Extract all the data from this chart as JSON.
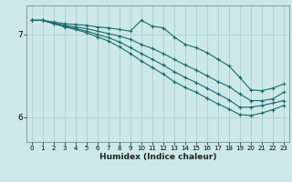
{
  "xlabel": "Humidex (Indice chaleur)",
  "bg_color": "#cce8e8",
  "line_color": "#1a6b6b",
  "grid_color": "#aacece",
  "xlim": [
    -0.5,
    23.5
  ],
  "ylim": [
    5.7,
    7.35
  ],
  "yticks": [
    6,
    7
  ],
  "xticks": [
    0,
    1,
    2,
    3,
    4,
    5,
    6,
    7,
    8,
    9,
    10,
    11,
    12,
    13,
    14,
    15,
    16,
    17,
    18,
    19,
    20,
    21,
    22,
    23
  ],
  "series": [
    {
      "x": [
        0,
        1,
        2,
        3,
        4,
        5,
        6,
        7,
        8,
        9,
        10,
        11,
        12,
        13,
        14,
        15,
        16,
        17,
        18,
        19,
        20,
        21,
        22,
        23
      ],
      "y": [
        7.17,
        7.17,
        7.15,
        7.13,
        7.12,
        7.11,
        7.09,
        7.08,
        7.06,
        7.04,
        7.17,
        7.1,
        7.08,
        6.97,
        6.88,
        6.84,
        6.78,
        6.7,
        6.62,
        6.48,
        6.33,
        6.32,
        6.35,
        6.4
      ]
    },
    {
      "x": [
        0,
        1,
        2,
        3,
        4,
        5,
        6,
        7,
        8,
        9,
        10,
        11,
        12,
        13,
        14,
        15,
        16,
        17,
        18,
        19,
        20,
        21,
        22,
        23
      ],
      "y": [
        7.17,
        7.17,
        7.14,
        7.11,
        7.09,
        7.07,
        7.04,
        7.01,
        6.98,
        6.94,
        6.88,
        6.83,
        6.77,
        6.7,
        6.63,
        6.57,
        6.5,
        6.43,
        6.37,
        6.28,
        6.2,
        6.2,
        6.22,
        6.3
      ]
    },
    {
      "x": [
        0,
        1,
        2,
        3,
        4,
        5,
        6,
        7,
        8,
        9,
        10,
        11,
        12,
        13,
        14,
        15,
        16,
        17,
        18,
        19,
        20,
        21,
        22,
        23
      ],
      "y": [
        7.17,
        7.17,
        7.13,
        7.1,
        7.07,
        7.04,
        7.0,
        6.96,
        6.91,
        6.84,
        6.77,
        6.7,
        6.63,
        6.55,
        6.48,
        6.42,
        6.35,
        6.28,
        6.21,
        6.12,
        6.12,
        6.14,
        6.17,
        6.2
      ]
    },
    {
      "x": [
        0,
        1,
        2,
        3,
        4,
        5,
        6,
        7,
        8,
        9,
        10,
        11,
        12,
        13,
        14,
        15,
        16,
        17,
        18,
        19,
        20,
        21,
        22,
        23
      ],
      "y": [
        7.17,
        7.17,
        7.13,
        7.09,
        7.06,
        7.02,
        6.97,
        6.92,
        6.85,
        6.77,
        6.68,
        6.6,
        6.52,
        6.43,
        6.36,
        6.3,
        6.23,
        6.16,
        6.1,
        6.03,
        6.02,
        6.05,
        6.09,
        6.14
      ]
    }
  ]
}
